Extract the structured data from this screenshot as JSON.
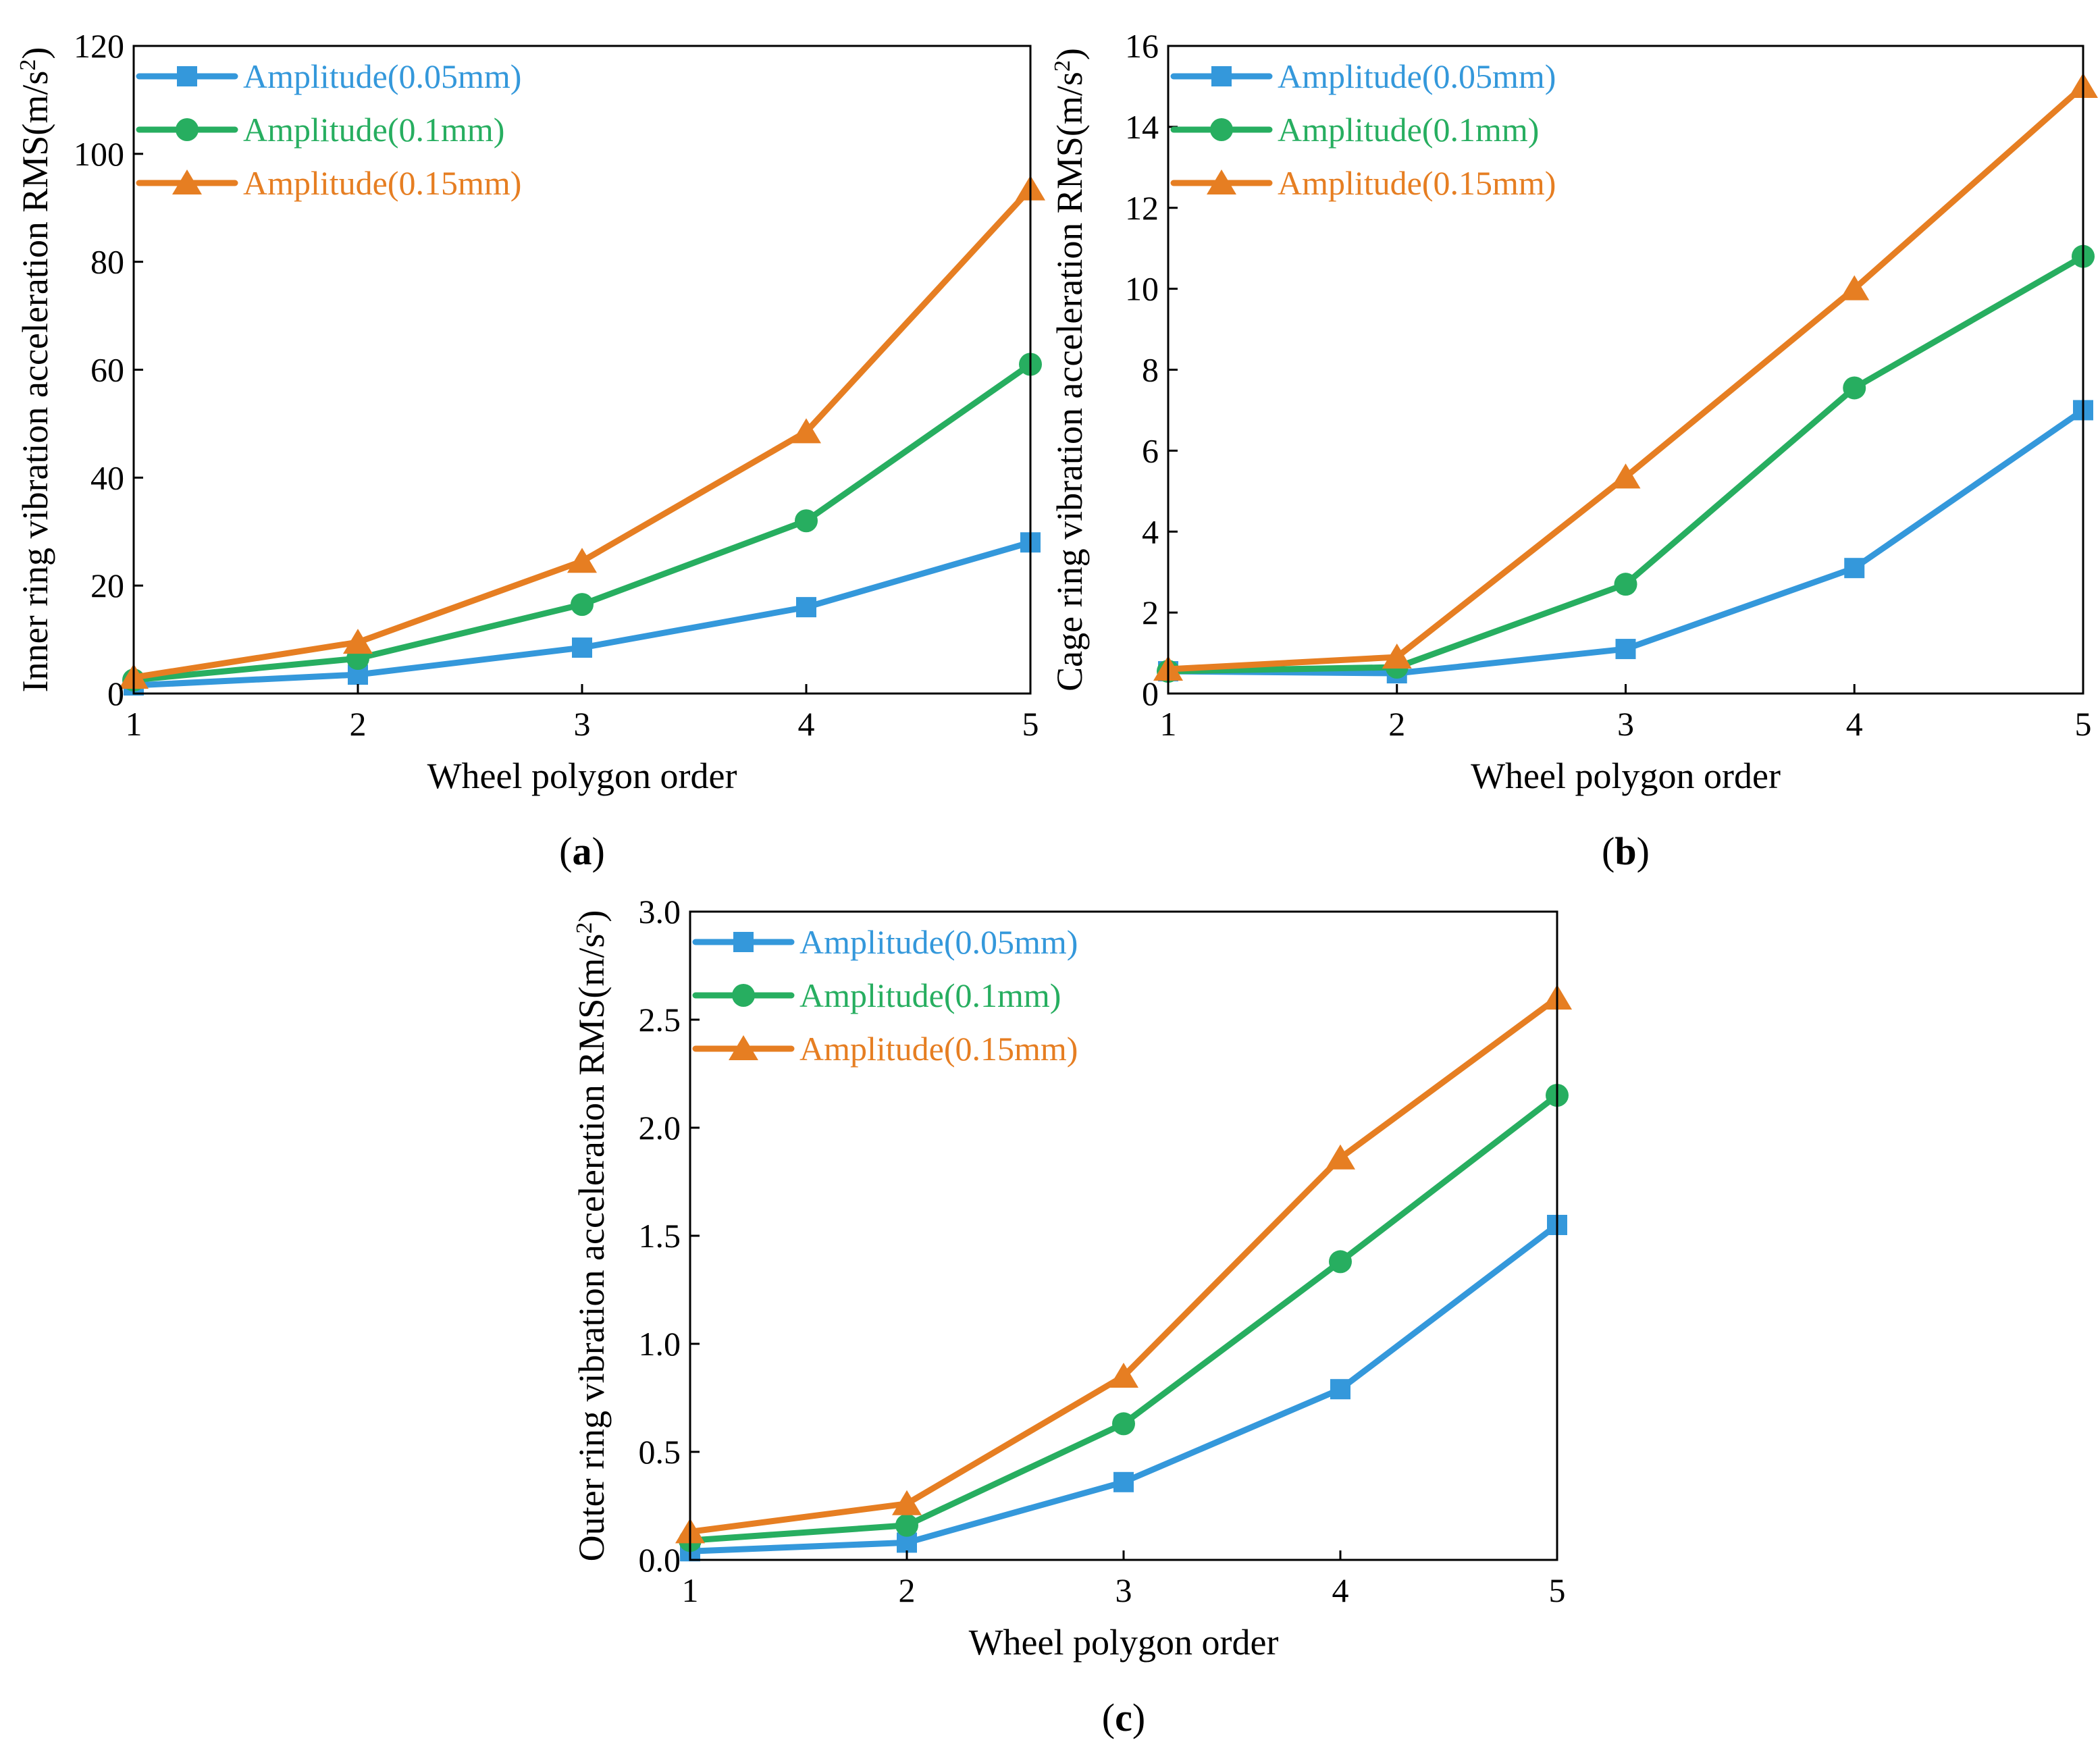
{
  "colors": {
    "series": [
      "#3498db",
      "#27ae60",
      "#e67e22"
    ],
    "axis": "#000000",
    "background": "#ffffff"
  },
  "chart_data": [
    {
      "id": "a",
      "type": "line",
      "panel_label": "a",
      "xlabel": "Wheel polygon order",
      "ylabel": "Inner ring vibration acceleration RMS(m/s",
      "ylabel_sup": "2",
      "ylabel_end": ")",
      "x": [
        1,
        2,
        3,
        4,
        5
      ],
      "xlim": [
        1,
        5
      ],
      "ylim": [
        0,
        120
      ],
      "xticks": [
        1,
        2,
        3,
        4,
        5
      ],
      "yticks": [
        0,
        20,
        40,
        60,
        80,
        100,
        120
      ],
      "ytick_labels": [
        "0",
        "20",
        "40",
        "60",
        "80",
        "100",
        "120"
      ],
      "legend_position": "top-left",
      "grid": false,
      "series": [
        {
          "name": "Amplitude(0.05mm)",
          "marker": "square",
          "values": [
            1.5,
            3.5,
            8.5,
            16,
            28
          ]
        },
        {
          "name": "Amplitude(0.1mm)",
          "marker": "circle",
          "values": [
            2.5,
            6.5,
            16.5,
            32,
            61
          ]
        },
        {
          "name": "Amplitude(0.15mm)",
          "marker": "triangle",
          "values": [
            3,
            9.5,
            24.5,
            48.5,
            93.5
          ]
        }
      ]
    },
    {
      "id": "b",
      "type": "line",
      "panel_label": "b",
      "xlabel": "Wheel polygon order",
      "ylabel": "Cage ring vibration acceleration RMS(m/s",
      "ylabel_sup": "2",
      "ylabel_end": ")",
      "x": [
        1,
        2,
        3,
        4,
        5
      ],
      "xlim": [
        1,
        5
      ],
      "ylim": [
        0,
        16
      ],
      "xticks": [
        1,
        2,
        3,
        4,
        5
      ],
      "yticks": [
        0,
        2,
        4,
        6,
        8,
        10,
        12,
        14,
        16
      ],
      "ytick_labels": [
        "0",
        "2",
        "4",
        "6",
        "8",
        "10",
        "12",
        "14",
        "16"
      ],
      "legend_position": "top-left",
      "grid": false,
      "series": [
        {
          "name": "Amplitude(0.05mm)",
          "marker": "square",
          "values": [
            0.55,
            0.5,
            1.1,
            3.1,
            7.0
          ]
        },
        {
          "name": "Amplitude(0.1mm)",
          "marker": "circle",
          "values": [
            0.55,
            0.65,
            2.7,
            7.55,
            10.8
          ]
        },
        {
          "name": "Amplitude(0.15mm)",
          "marker": "triangle",
          "values": [
            0.6,
            0.9,
            5.35,
            10.0,
            15.0
          ]
        }
      ]
    },
    {
      "id": "c",
      "type": "line",
      "panel_label": "c",
      "xlabel": "Wheel polygon order",
      "ylabel": "Outer ring vibration acceleration RMS(m/s",
      "ylabel_sup": "2",
      "ylabel_end": ")",
      "x": [
        1,
        2,
        3,
        4,
        5
      ],
      "xlim": [
        1,
        5
      ],
      "ylim": [
        0,
        3.0
      ],
      "xticks": [
        1,
        2,
        3,
        4,
        5
      ],
      "yticks": [
        0,
        0.5,
        1.0,
        1.5,
        2.0,
        2.5,
        3.0
      ],
      "ytick_labels": [
        "0.0",
        "0.5",
        "1.0",
        "1.5",
        "2.0",
        "2.5",
        "3.0"
      ],
      "legend_position": "top-left",
      "grid": false,
      "series": [
        {
          "name": "Amplitude(0.05mm)",
          "marker": "square",
          "values": [
            0.04,
            0.08,
            0.36,
            0.79,
            1.55
          ]
        },
        {
          "name": "Amplitude(0.1mm)",
          "marker": "circle",
          "values": [
            0.09,
            0.16,
            0.63,
            1.38,
            2.15
          ]
        },
        {
          "name": "Amplitude(0.15mm)",
          "marker": "triangle",
          "values": [
            0.13,
            0.26,
            0.85,
            1.86,
            2.6
          ]
        }
      ]
    }
  ]
}
